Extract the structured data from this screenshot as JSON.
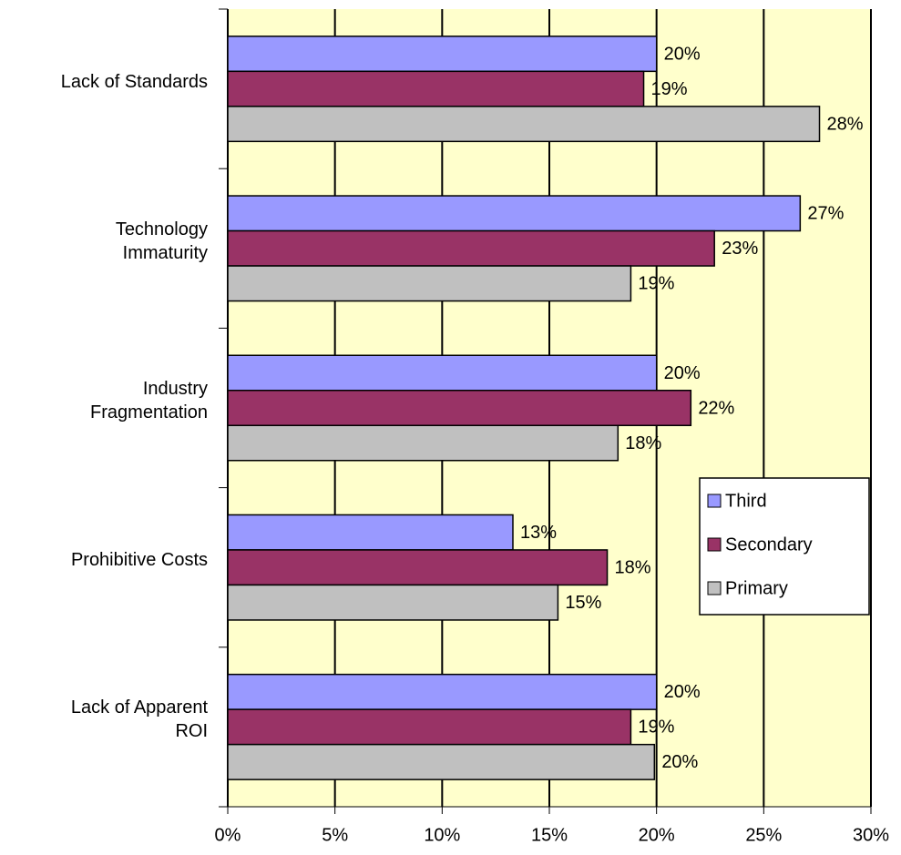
{
  "chart_data": {
    "type": "bar",
    "orientation": "horizontal",
    "categories": [
      "Lack of Standards",
      "Technology\nImmaturity",
      "Industry\nFragmentation",
      "Prohibitive Costs",
      "Lack of Apparent\nROI"
    ],
    "series": [
      {
        "name": "Third",
        "color": "#9999ff",
        "values": [
          20,
          26.7,
          20,
          13.3,
          20
        ],
        "value_labels": [
          "20%",
          "27%",
          "20%",
          "13%",
          "20%"
        ]
      },
      {
        "name": "Secondary",
        "color": "#993366",
        "values": [
          19.4,
          22.7,
          21.6,
          17.7,
          18.8
        ],
        "value_labels": [
          "19%",
          "23%",
          "22%",
          "18%",
          "19%"
        ]
      },
      {
        "name": "Primary",
        "color": "#c0c0c0",
        "values": [
          27.6,
          18.8,
          18.2,
          15.4,
          19.9
        ],
        "value_labels": [
          "28%",
          "19%",
          "18%",
          "15%",
          "20%"
        ]
      }
    ],
    "xlim": [
      0,
      30
    ],
    "xticks": [
      {
        "value": 0,
        "label": "0%"
      },
      {
        "value": 5,
        "label": "5%"
      },
      {
        "value": 10,
        "label": "10%"
      },
      {
        "value": 15,
        "label": "15%"
      },
      {
        "value": 20,
        "label": "20%"
      },
      {
        "value": 25,
        "label": "25%"
      },
      {
        "value": 30,
        "label": "30%"
      }
    ],
    "grid": true,
    "plot_background": "#ffffcc",
    "legend": "right"
  }
}
